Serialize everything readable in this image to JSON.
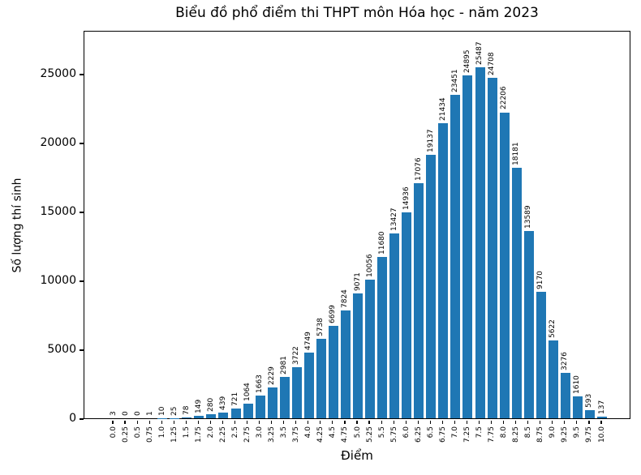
{
  "title": "Biểu đồ phổ điểm thi THPT môn Hóa học - năm 2023",
  "chart_data": {
    "type": "bar",
    "title": "Biểu đồ phổ điểm thi THPT môn Hóa học - năm 2023",
    "xlabel": "Điểm",
    "ylabel": "Số lượng thí sinh",
    "categories": [
      "0.0",
      "0.25",
      "0.5",
      "0.75",
      "1.0",
      "1.25",
      "1.5",
      "1.75",
      "2.0",
      "2.25",
      "2.5",
      "2.75",
      "3.0",
      "3.25",
      "3.5",
      "3.75",
      "4.0",
      "4.25",
      "4.5",
      "4.75",
      "5.0",
      "5.25",
      "5.5",
      "5.75",
      "6.0",
      "6.25",
      "6.5",
      "6.75",
      "7.0",
      "7.25",
      "7.5",
      "7.75",
      "8.0",
      "8.25",
      "8.5",
      "8.75",
      "9.0",
      "9.25",
      "9.5",
      "9.75",
      "10.0"
    ],
    "values": [
      3,
      0,
      0,
      1,
      10,
      25,
      78,
      149,
      280,
      439,
      721,
      1064,
      1663,
      2229,
      2981,
      3722,
      4749,
      5738,
      6699,
      7824,
      9071,
      10056,
      11680,
      13427,
      14936,
      17076,
      19137,
      21434,
      23451,
      24895,
      25487,
      24708,
      22206,
      18181,
      13589,
      9170,
      5622,
      3276,
      1610,
      593,
      137
    ],
    "value_labels_shown": true,
    "yticks": [
      0,
      5000,
      10000,
      15000,
      20000,
      25000
    ],
    "ylim": [
      0,
      28200
    ],
    "grid": false,
    "legend": "none",
    "bar_color": "#1f77b4",
    "text_color": "#000000",
    "background_color": "#ffffff"
  }
}
